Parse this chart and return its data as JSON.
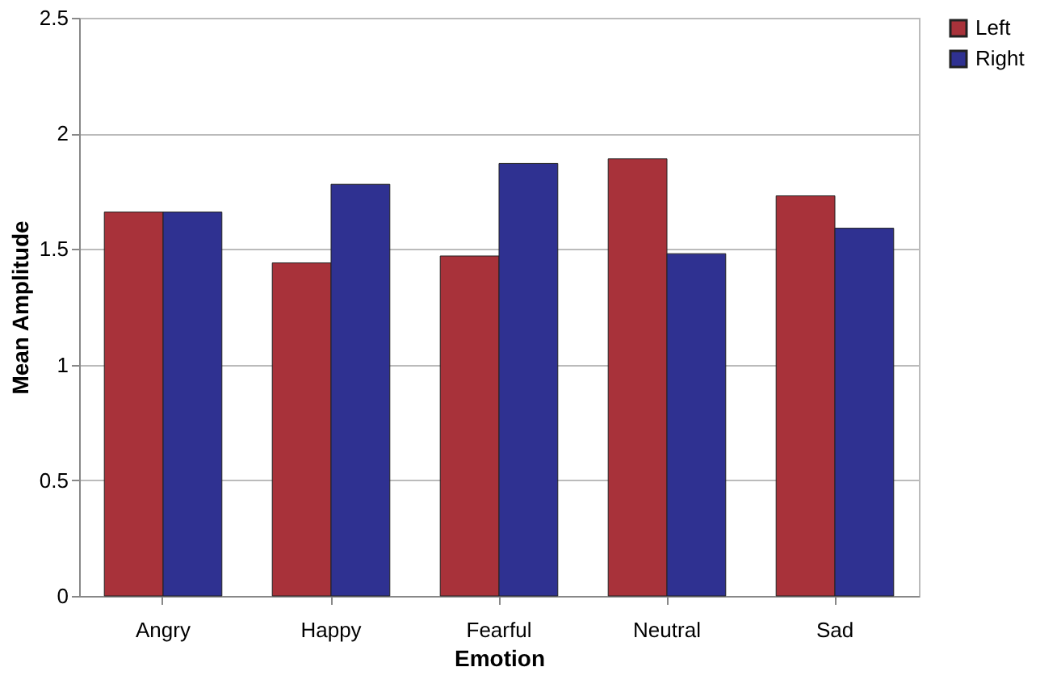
{
  "chart_data": {
    "type": "bar",
    "xlabel": "Emotion",
    "ylabel": "Mean Amplitude",
    "categories": [
      "Angry",
      "Happy",
      "Fearful",
      "Neutral",
      "Sad"
    ],
    "series": [
      {
        "name": "Left",
        "color": "#a8323a",
        "values": [
          1.66,
          1.44,
          1.47,
          1.89,
          1.73
        ]
      },
      {
        "name": "Right",
        "color": "#2f3191",
        "values": [
          1.66,
          1.78,
          1.87,
          1.48,
          1.59
        ]
      }
    ],
    "ylim": [
      0,
      2.5
    ],
    "yticks": [
      0,
      0.5,
      1,
      1.5,
      2,
      2.5
    ],
    "grid": "y",
    "legend": "right"
  }
}
